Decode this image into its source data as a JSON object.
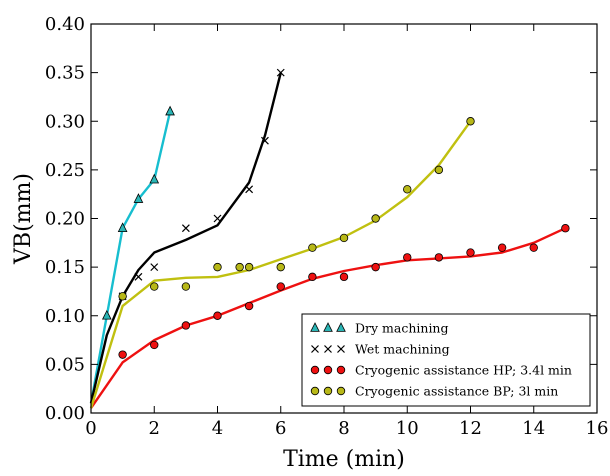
{
  "chart_data": {
    "type": "scatter",
    "xlabel": "Time (min)",
    "ylabel": "VB(mm)",
    "xlim": [
      0,
      16
    ],
    "ylim": [
      0,
      0.4
    ],
    "x_ticks": [
      0,
      2,
      4,
      6,
      8,
      10,
      12,
      14,
      16
    ],
    "x_tick_labels": [
      "0",
      "2",
      "4",
      "6",
      "8",
      "10",
      "12",
      "14",
      "16"
    ],
    "y_ticks": [
      0,
      0.05,
      0.1,
      0.15,
      0.2,
      0.25,
      0.3,
      0.35,
      0.4
    ],
    "y_tick_labels": [
      "0.00",
      "0.05",
      "0.10",
      "0.15",
      "0.20",
      "0.25",
      "0.30",
      "0.35",
      "0.40"
    ],
    "grid": false,
    "legend_position": "lower-right",
    "series": [
      {
        "name": "Dry machining",
        "marker": "triangle",
        "color": "#17becf",
        "marker_color": "#2ab5b5",
        "points": [
          [
            0.5,
            0.1
          ],
          [
            1.0,
            0.19
          ],
          [
            1.5,
            0.22
          ],
          [
            2.0,
            0.24
          ],
          [
            2.5,
            0.31
          ]
        ],
        "fit": [
          [
            0,
            0.01
          ],
          [
            0.5,
            0.1
          ],
          [
            1.0,
            0.19
          ],
          [
            1.5,
            0.22
          ],
          [
            2.0,
            0.24
          ],
          [
            2.5,
            0.31
          ]
        ]
      },
      {
        "name": "Wet machining",
        "marker": "x",
        "color": "#000000",
        "marker_color": "#000000",
        "points": [
          [
            1.0,
            0.12
          ],
          [
            1.5,
            0.14
          ],
          [
            2.0,
            0.15
          ],
          [
            3.0,
            0.19
          ],
          [
            4.0,
            0.2
          ],
          [
            5.0,
            0.23
          ],
          [
            5.5,
            0.28
          ],
          [
            6.0,
            0.35
          ]
        ],
        "fit": [
          [
            0,
            0.01
          ],
          [
            0.5,
            0.08
          ],
          [
            1.0,
            0.12
          ],
          [
            1.5,
            0.147
          ],
          [
            2.0,
            0.165
          ],
          [
            3.0,
            0.178
          ],
          [
            4.0,
            0.193
          ],
          [
            5.0,
            0.237
          ],
          [
            5.5,
            0.285
          ],
          [
            6.0,
            0.35
          ]
        ]
      },
      {
        "name": "Cryogenic assistance HP; 3.4l min",
        "marker": "circle",
        "color": "#ee1111",
        "marker_color": "#ee1111",
        "points": [
          [
            1,
            0.06
          ],
          [
            2,
            0.07
          ],
          [
            3,
            0.09
          ],
          [
            4,
            0.1
          ],
          [
            5,
            0.11
          ],
          [
            6,
            0.13
          ],
          [
            7,
            0.14
          ],
          [
            8,
            0.14
          ],
          [
            9,
            0.15
          ],
          [
            10,
            0.16
          ],
          [
            11,
            0.16
          ],
          [
            12,
            0.165
          ],
          [
            13,
            0.17
          ],
          [
            14,
            0.17
          ],
          [
            15,
            0.19
          ]
        ],
        "fit": [
          [
            0,
            0.005
          ],
          [
            1,
            0.052
          ],
          [
            2,
            0.075
          ],
          [
            3,
            0.09
          ],
          [
            4,
            0.1
          ],
          [
            5,
            0.113
          ],
          [
            6,
            0.126
          ],
          [
            7,
            0.138
          ],
          [
            8,
            0.146
          ],
          [
            9,
            0.152
          ],
          [
            10,
            0.157
          ],
          [
            11,
            0.159
          ],
          [
            12,
            0.161
          ],
          [
            13,
            0.165
          ],
          [
            14,
            0.175
          ],
          [
            15,
            0.19
          ]
        ]
      },
      {
        "name": "Cryogenic assistance BP; 3l min",
        "marker": "circle",
        "color": "#c0c010",
        "marker_color": "#b8b818",
        "points": [
          [
            1,
            0.12
          ],
          [
            2,
            0.13
          ],
          [
            3,
            0.13
          ],
          [
            4,
            0.15
          ],
          [
            4.7,
            0.15
          ],
          [
            5,
            0.15
          ],
          [
            6,
            0.15
          ],
          [
            7,
            0.17
          ],
          [
            8,
            0.18
          ],
          [
            9,
            0.2
          ],
          [
            10,
            0.23
          ],
          [
            11,
            0.25
          ],
          [
            12,
            0.3
          ]
        ],
        "fit": [
          [
            0,
            0.005
          ],
          [
            1,
            0.11
          ],
          [
            2,
            0.136
          ],
          [
            3,
            0.139
          ],
          [
            4,
            0.14
          ],
          [
            5,
            0.147
          ],
          [
            6,
            0.158
          ],
          [
            7,
            0.169
          ],
          [
            8,
            0.181
          ],
          [
            9,
            0.198
          ],
          [
            10,
            0.222
          ],
          [
            11,
            0.255
          ],
          [
            12,
            0.3
          ]
        ]
      }
    ]
  }
}
